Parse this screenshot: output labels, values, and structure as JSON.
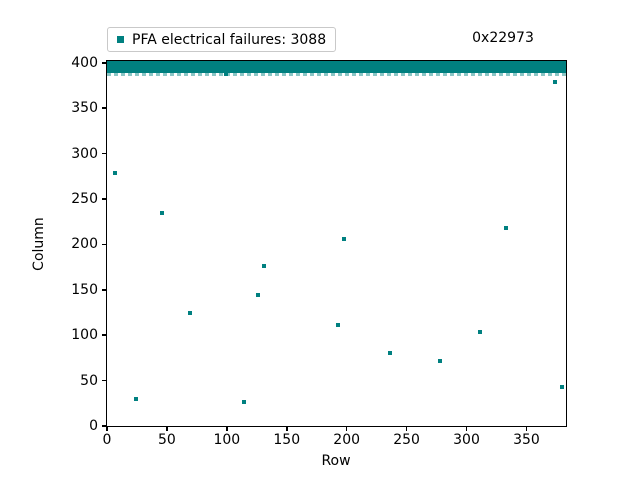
{
  "figure": {
    "annotation_top_right": "0x22973"
  },
  "chart_data": {
    "type": "scatter",
    "title": "",
    "legend": {
      "label": "PFA electrical failures: 3088",
      "marker_color": "#008080",
      "position": "above-plot-left"
    },
    "annotation": "0x22973",
    "xlabel": "Row",
    "ylabel": "Column",
    "xlim": [
      0,
      383
    ],
    "ylim": [
      0,
      402
    ],
    "xticks": [
      0,
      50,
      100,
      150,
      200,
      250,
      300,
      350
    ],
    "yticks": [
      0,
      50,
      100,
      150,
      200,
      250,
      300,
      350,
      400
    ],
    "grid": false,
    "marker_color": "#008080",
    "marker_shape": "square",
    "failure_count": 3088,
    "dense_band": {
      "description": "solid band of overlapping failure markers spanning full x range",
      "x_min": 0,
      "x_max": 383,
      "y_min": 389,
      "y_max": 402,
      "dashed_lower_edge_y": 388
    },
    "scatter_points": [
      [
        7,
        279
      ],
      [
        24,
        30
      ],
      [
        46,
        235
      ],
      [
        69,
        125
      ],
      [
        99,
        388
      ],
      [
        114,
        26
      ],
      [
        126,
        144
      ],
      [
        131,
        176
      ],
      [
        193,
        111
      ],
      [
        198,
        206
      ],
      [
        236,
        80
      ],
      [
        278,
        72
      ],
      [
        311,
        103
      ],
      [
        333,
        218
      ],
      [
        374,
        379
      ],
      [
        380,
        43
      ]
    ]
  }
}
